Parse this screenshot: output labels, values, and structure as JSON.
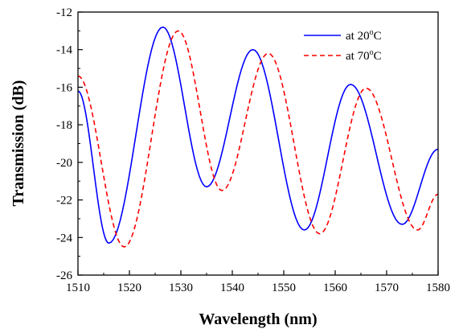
{
  "chart_data": {
    "type": "line",
    "xlabel": "Wavelength (nm)",
    "ylabel": "Transmission (dB)",
    "xlim": [
      1510,
      1580
    ],
    "ylim": [
      -26,
      -12
    ],
    "x_ticks": [
      1510,
      1520,
      1530,
      1540,
      1550,
      1560,
      1570,
      1580
    ],
    "x_tick_labels": [
      "1510",
      "1520",
      "1530",
      "1540",
      "1550",
      "1560",
      "1570",
      "1580"
    ],
    "y_ticks": [
      -26,
      -24,
      -22,
      -20,
      -18,
      -16,
      -14,
      -12
    ],
    "y_tick_labels": [
      "-26",
      "-24",
      "-22",
      "-20",
      "-18",
      "-16",
      "-14",
      "-12"
    ],
    "grid": false,
    "legend_position": "top-right",
    "series": [
      {
        "name_prefix": "at 20",
        "name_sup": "o",
        "name_suffix": "C",
        "color": "#0000ff",
        "dash": "solid",
        "points": [
          [
            1510,
            -16.2
          ],
          [
            1516,
            -24.3
          ],
          [
            1526.5,
            -12.8
          ],
          [
            1535,
            -21.3
          ],
          [
            1544,
            -14.0
          ],
          [
            1554,
            -23.6
          ],
          [
            1563,
            -15.85
          ],
          [
            1573,
            -23.3
          ],
          [
            1580,
            -19.3
          ]
        ]
      },
      {
        "name_prefix": "at 70",
        "name_sup": "o",
        "name_suffix": "C",
        "color": "#ff0000",
        "dash": "dashed",
        "points": [
          [
            1510,
            -15.4
          ],
          [
            1519,
            -24.5
          ],
          [
            1529.5,
            -13.0
          ],
          [
            1538,
            -21.5
          ],
          [
            1547,
            -14.2
          ],
          [
            1557,
            -23.8
          ],
          [
            1566,
            -16.05
          ],
          [
            1576,
            -23.6
          ],
          [
            1580,
            -21.7
          ]
        ]
      }
    ]
  }
}
